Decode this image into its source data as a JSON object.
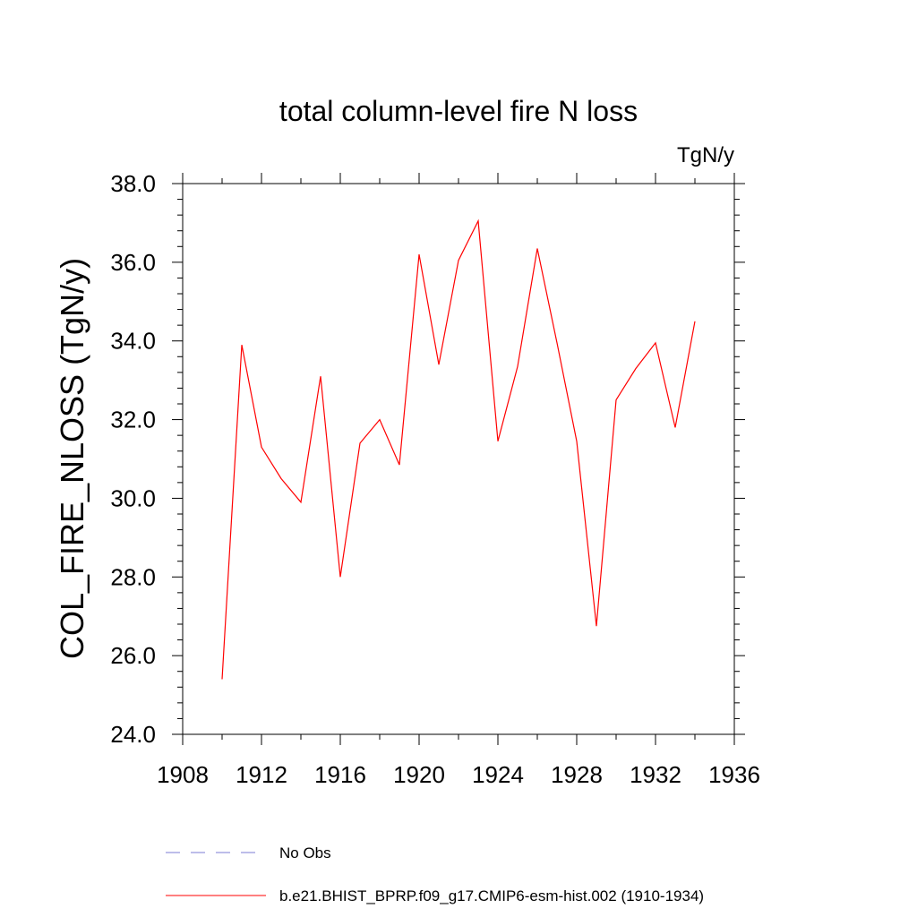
{
  "chart_data": {
    "type": "line",
    "title": "total column-level fire N loss",
    "units_label": "TgN/y",
    "ylabel": "COL_FIRE_NLOSS  (TgN/y)",
    "xlabel": "",
    "xlim": [
      1908,
      1936
    ],
    "ylim": [
      24.0,
      38.0
    ],
    "x_ticks": [
      1908,
      1912,
      1916,
      1920,
      1924,
      1928,
      1932,
      1936
    ],
    "x_tick_labels": [
      "1908",
      "1912",
      "1916",
      "1920",
      "1924",
      "1928",
      "1932",
      "1936"
    ],
    "y_ticks": [
      24,
      26,
      28,
      30,
      32,
      34,
      36,
      38
    ],
    "y_tick_labels": [
      "24.0",
      "26.0",
      "28.0",
      "30.0",
      "32.0",
      "34.0",
      "36.0",
      "38.0"
    ],
    "grid": false,
    "legend_position": "bottom",
    "series": [
      {
        "name": "b.e21.BHIST_BPRP.f09_g17.CMIP6-esm-hist.002 (1910-1934)",
        "color": "#ff0000",
        "style": "solid",
        "x": [
          1910,
          1911,
          1912,
          1913,
          1914,
          1915,
          1916,
          1917,
          1918,
          1919,
          1920,
          1921,
          1922,
          1923,
          1924,
          1925,
          1926,
          1927,
          1928,
          1929,
          1930,
          1931,
          1932,
          1933,
          1934
        ],
        "values": [
          25.4,
          33.9,
          31.3,
          30.5,
          29.9,
          33.1,
          28.0,
          31.4,
          32.0,
          30.85,
          36.2,
          33.4,
          36.05,
          37.05,
          31.45,
          33.35,
          36.35,
          33.95,
          31.45,
          26.75,
          32.5,
          33.3,
          33.95,
          31.8,
          34.5
        ]
      }
    ],
    "legend": [
      {
        "label": "No Obs",
        "color": "#7b7bd6",
        "style": "dashed"
      },
      {
        "label": "b.e21.BHIST_BPRP.f09_g17.CMIP6-esm-hist.002 (1910-1934)",
        "color": "#ff0000",
        "style": "solid"
      }
    ]
  }
}
